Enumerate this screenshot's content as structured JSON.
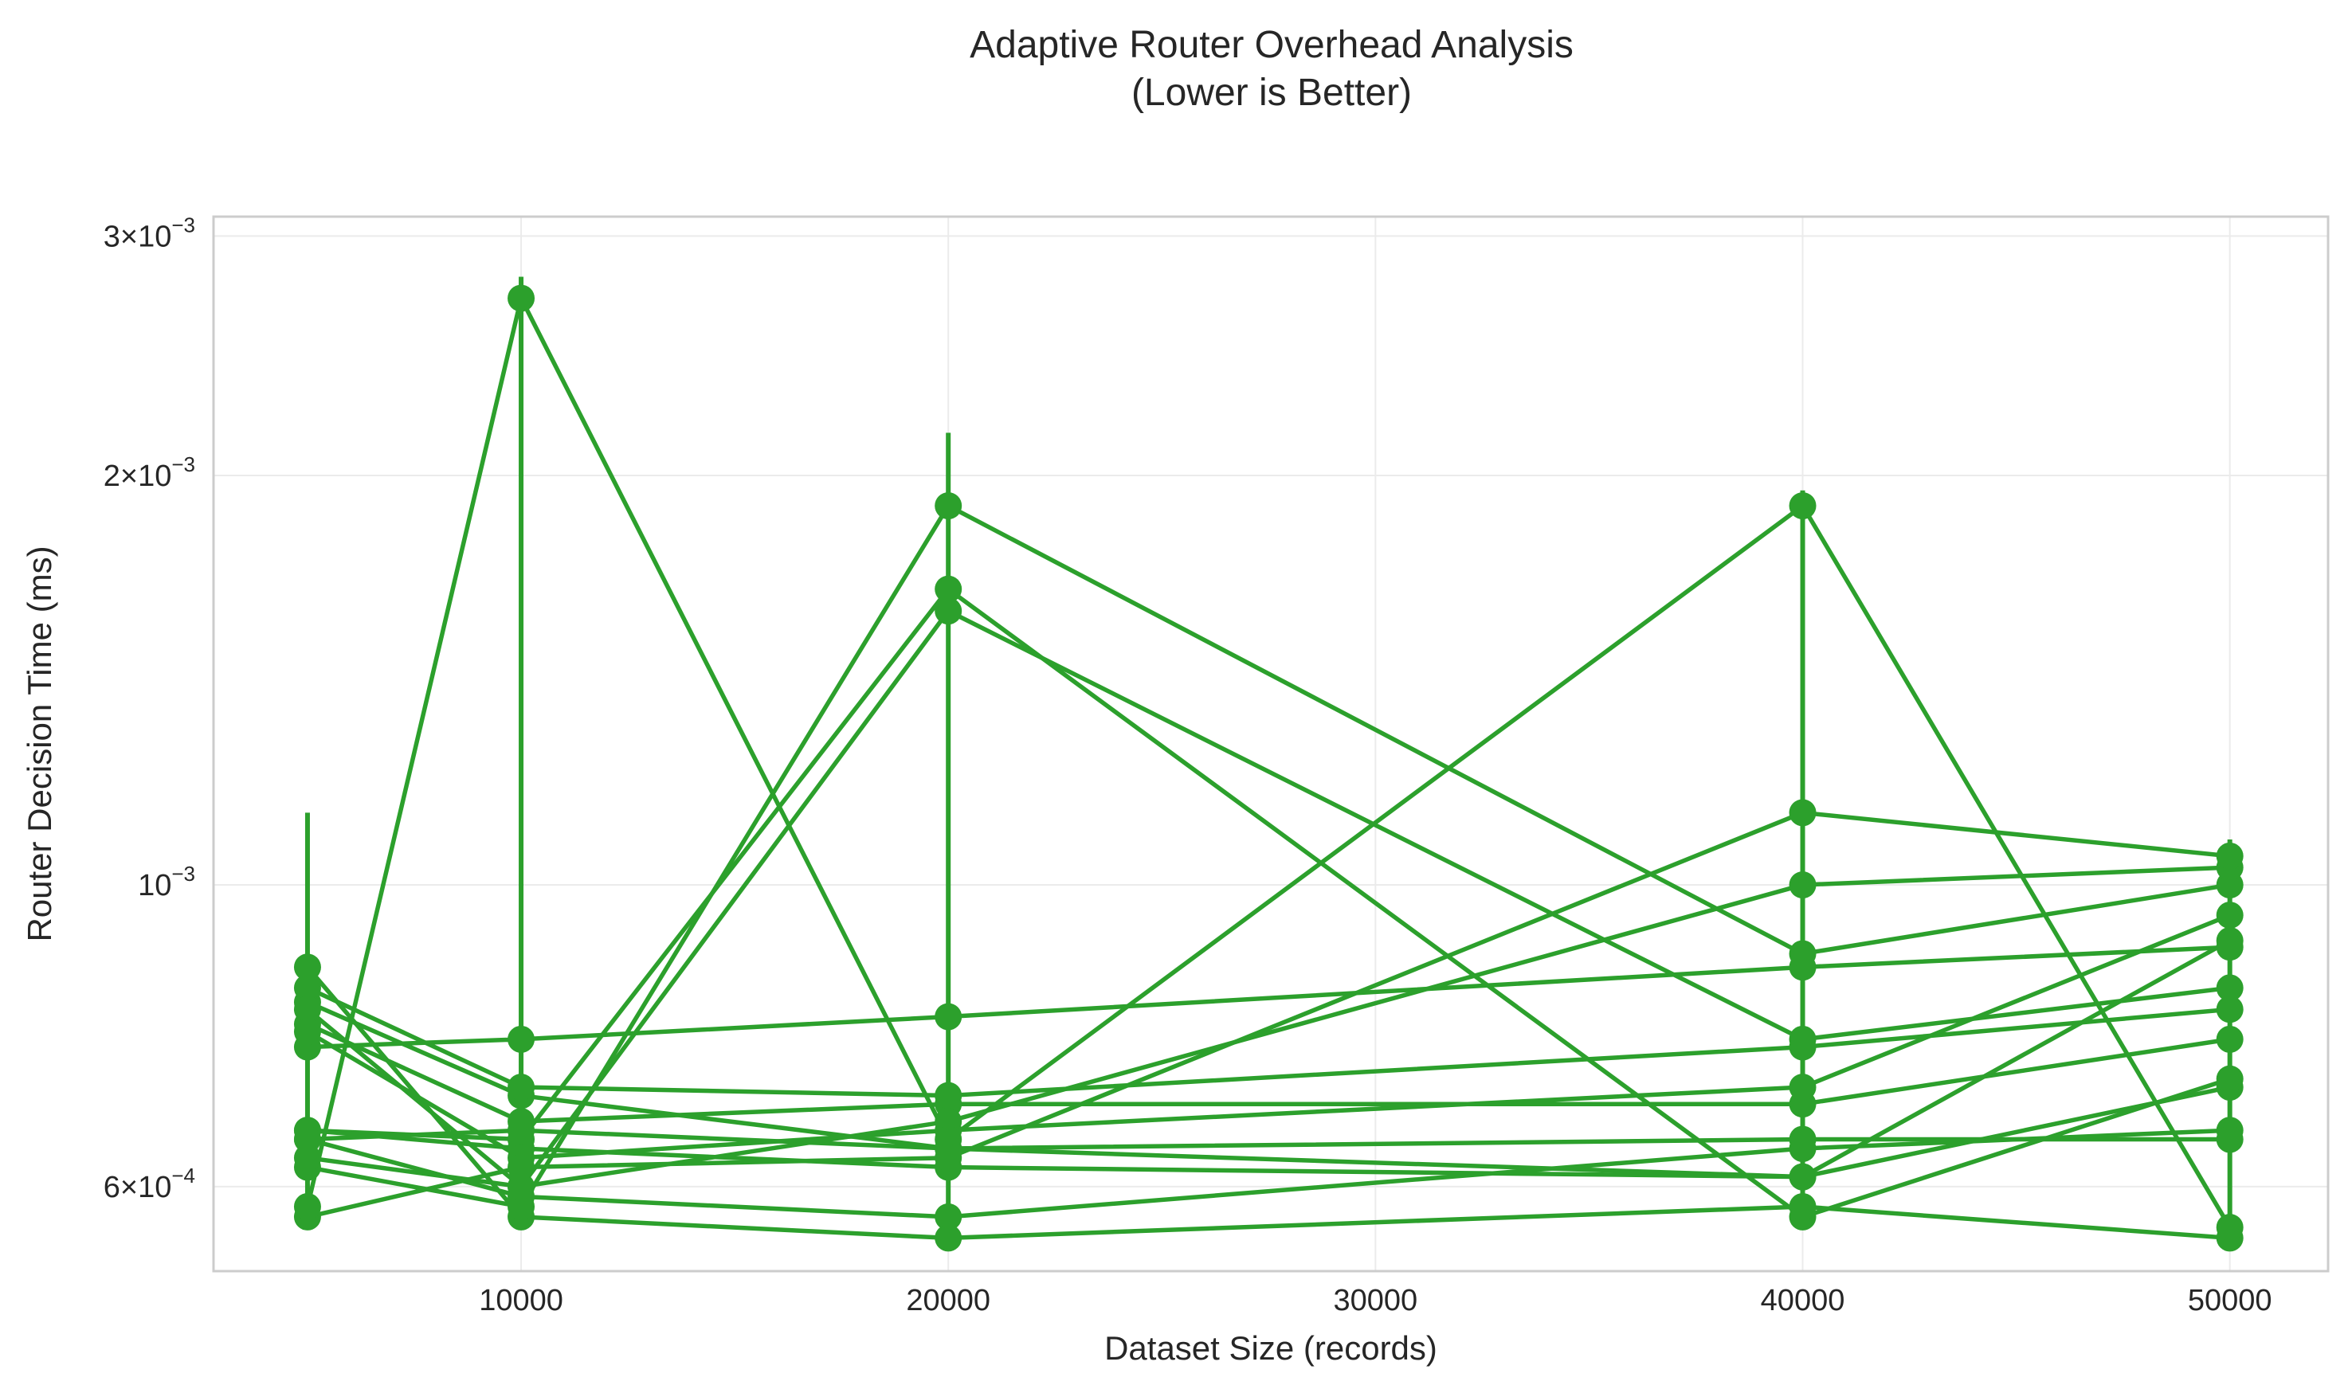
{
  "chart_data": {
    "type": "line",
    "title": "Adaptive Router Overhead Analysis\n(Lower is Better)",
    "xlabel": "Dataset Size (records)",
    "ylabel": "Router Decision Time (ms)",
    "yscale": "log",
    "xlim": [
      2800,
      52300
    ],
    "ylim": [
      0.00052,
      0.0031
    ],
    "x_ticks": [
      10000,
      20000,
      30000,
      40000,
      50000
    ],
    "y_ticks": [
      {
        "value": 0.0006,
        "mantissa": "6",
        "exponent": "-4"
      },
      {
        "value": 0.001,
        "mantissa": "",
        "exponent": "-3"
      },
      {
        "value": 0.002,
        "mantissa": "2",
        "exponent": "-3"
      },
      {
        "value": 0.003,
        "mantissa": "3",
        "exponent": "-3"
      }
    ],
    "grid": true,
    "legend": "none",
    "color": "#2ca02c",
    "x": [
      5000,
      10000,
      20000,
      40000,
      50000
    ],
    "series": [
      {
        "values": [
          0.00082,
          0.0007,
          0.00064,
          0.00061,
          0.00091
        ]
      },
      {
        "values": [
          0.00066,
          0.00064,
          0.00062,
          0.00061,
          0.00071
        ]
      },
      {
        "values": [
          0.00065,
          0.00059,
          0.00057,
          0.00064,
          0.00066
        ]
      },
      {
        "values": [
          0.00076,
          0.00077,
          0.0008,
          0.00087,
          0.0009
        ]
      },
      {
        "values": [
          0.00066,
          0.00065,
          0.00165,
          0.00057,
          0.00072
        ]
      },
      {
        "values": [
          0.00065,
          0.00066,
          0.00064,
          0.00065,
          0.00065
        ]
      },
      {
        "values": [
          0.00079,
          0.00067,
          0.00069,
          0.00069,
          0.00077
        ]
      },
      {
        "values": [
          0.00084,
          0.00071,
          0.0007,
          0.00076,
          0.00081
        ]
      },
      {
        "values": [
          0.00087,
          0.00057,
          0.00055,
          0.00058,
          0.00055
        ]
      },
      {
        "values": [
          0.00081,
          0.0006,
          0.00159,
          0.00077,
          0.00084
        ]
      },
      {
        "values": [
          0.00078,
          0.00063,
          0.00066,
          0.00071,
          0.00095
        ]
      },
      {
        "values": [
          0.00062,
          0.00058,
          0.0019,
          0.00089,
          0.001
        ]
      },
      {
        "values": [
          0.00063,
          0.0006,
          0.00067,
          0.001,
          0.00103
        ]
      },
      {
        "values": [
          0.00057,
          0.00062,
          0.00063,
          0.00113,
          0.00105
        ]
      },
      {
        "values": [
          0.00058,
          0.0027,
          0.00065,
          0.0019,
          0.00056
        ]
      }
    ],
    "error_bars": [
      {
        "x": 5000,
        "low": 0.00057,
        "high": 0.00113
      },
      {
        "x": 10000,
        "low": 0.00057,
        "high": 0.0028
      },
      {
        "x": 20000,
        "low": 0.00055,
        "high": 0.00215
      },
      {
        "x": 40000,
        "low": 0.00057,
        "high": 0.00195
      },
      {
        "x": 50000,
        "low": 0.00055,
        "high": 0.00108
      }
    ]
  }
}
